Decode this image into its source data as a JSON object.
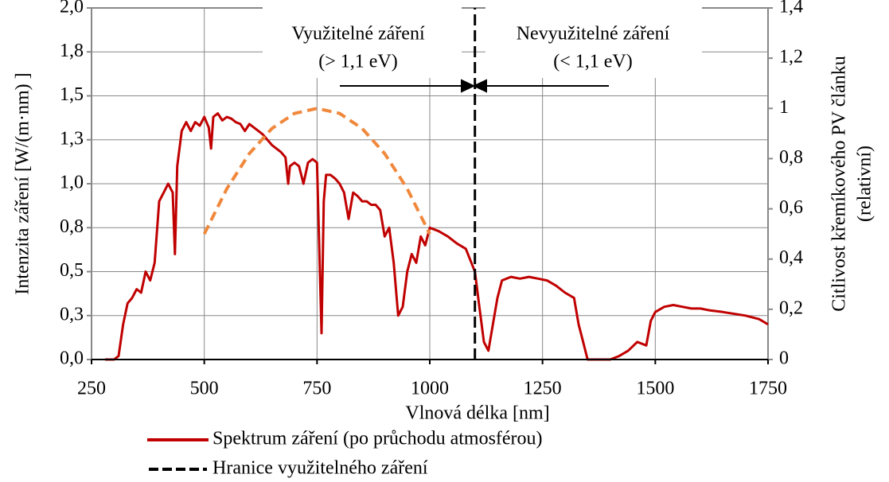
{
  "chart_data": {
    "type": "line",
    "xlabel": "Vlnová délka [nm]",
    "ylabel": "Intenzita záření [W/(m·nm) ]",
    "y2label": [
      "Citlivost křemíkového PV článku",
      "(relativní)"
    ],
    "annotations": [
      "Využitelné záření",
      "(> 1,1 eV)",
      "Nevyužitelné záření",
      "(< 1,1 eV)"
    ],
    "xlim": [
      250,
      1750
    ],
    "xticks": [
      250,
      500,
      750,
      1000,
      1250,
      1500,
      1750
    ],
    "ylim": [
      0,
      2
    ],
    "yticks": [
      {
        "value": 0,
        "label": "0,0"
      },
      {
        "value": 0.25,
        "label": "0,3"
      },
      {
        "value": 0.5,
        "label": "0,5"
      },
      {
        "value": 0.75,
        "label": "0,8"
      },
      {
        "value": 1,
        "label": "1,0"
      },
      {
        "value": 1.25,
        "label": "1,3"
      },
      {
        "value": 1.5,
        "label": "1,5"
      },
      {
        "value": 1.75,
        "label": "1,8"
      },
      {
        "value": 2,
        "label": "2,0"
      }
    ],
    "y2lim": [
      0,
      1.4
    ],
    "y2ticks": [
      0,
      {
        "value": 0.2,
        "label": "0,2"
      },
      {
        "value": 0.4,
        "label": "0,4"
      },
      {
        "value": 0.6,
        "label": "0,6"
      },
      {
        "value": 0.8,
        "label": "0,8"
      },
      1,
      {
        "value": 1.2,
        "label": "1,2"
      },
      {
        "value": 1.4,
        "label": "1,4"
      }
    ],
    "grid": true,
    "series": [
      {
        "name": "Spektrum záření (po průchodu atmosférou)",
        "color": "#c00000",
        "dash": "solid",
        "x": [
          280,
          300,
          310,
          320,
          330,
          340,
          350,
          360,
          370,
          380,
          390,
          400,
          410,
          420,
          430,
          435,
          440,
          450,
          460,
          470,
          480,
          490,
          500,
          510,
          515,
          520,
          530,
          540,
          550,
          560,
          570,
          580,
          590,
          600,
          610,
          620,
          630,
          640,
          650,
          660,
          670,
          680,
          686,
          690,
          700,
          710,
          720,
          730,
          740,
          750,
          760,
          765,
          770,
          780,
          790,
          800,
          810,
          820,
          830,
          840,
          850,
          860,
          870,
          880,
          890,
          900,
          910,
          920,
          930,
          940,
          950,
          960,
          970,
          980,
          990,
          1000,
          1020,
          1040,
          1060,
          1080,
          1100,
          1110,
          1120,
          1130,
          1140,
          1150,
          1160,
          1180,
          1200,
          1220,
          1240,
          1260,
          1280,
          1300,
          1320,
          1330,
          1340,
          1350,
          1400,
          1420,
          1440,
          1460,
          1480,
          1490,
          1500,
          1520,
          1540,
          1560,
          1580,
          1600,
          1620,
          1650,
          1700,
          1730,
          1750
        ],
        "values": [
          0,
          0,
          0.02,
          0.2,
          0.32,
          0.35,
          0.4,
          0.38,
          0.5,
          0.45,
          0.55,
          0.9,
          0.95,
          1.0,
          0.95,
          0.6,
          1.1,
          1.3,
          1.35,
          1.3,
          1.35,
          1.33,
          1.38,
          1.32,
          1.2,
          1.38,
          1.4,
          1.36,
          1.38,
          1.37,
          1.35,
          1.34,
          1.3,
          1.34,
          1.32,
          1.3,
          1.28,
          1.25,
          1.22,
          1.2,
          1.18,
          1.15,
          1.0,
          1.1,
          1.12,
          1.1,
          1.0,
          1.12,
          1.14,
          1.12,
          0.15,
          0.9,
          1.05,
          1.05,
          1.03,
          1.0,
          0.95,
          0.8,
          0.95,
          0.93,
          0.9,
          0.9,
          0.88,
          0.88,
          0.85,
          0.7,
          0.75,
          0.55,
          0.25,
          0.3,
          0.5,
          0.6,
          0.55,
          0.7,
          0.65,
          0.75,
          0.73,
          0.7,
          0.66,
          0.63,
          0.5,
          0.3,
          0.1,
          0.05,
          0.2,
          0.35,
          0.45,
          0.47,
          0.46,
          0.47,
          0.46,
          0.45,
          0.42,
          0.38,
          0.35,
          0.2,
          0.1,
          0,
          0,
          0.02,
          0.05,
          0.1,
          0.08,
          0.22,
          0.27,
          0.3,
          0.31,
          0.3,
          0.29,
          0.29,
          0.28,
          0.27,
          0.25,
          0.23,
          0.2
        ]
      },
      {
        "name": "Hranice využitelného záření",
        "color": "#000000",
        "dash": "dashed",
        "x": [
          1100,
          1100
        ],
        "values": [
          0,
          2
        ]
      },
      {
        "color": "#f0883c",
        "dash": "dashed",
        "axis": "y2",
        "x": [
          500,
          550,
          600,
          650,
          700,
          750,
          800,
          850,
          900,
          950,
          1000
        ],
        "values": [
          0.5,
          0.68,
          0.82,
          0.92,
          0.98,
          1,
          0.98,
          0.92,
          0.82,
          0.68,
          0.5
        ]
      }
    ]
  }
}
